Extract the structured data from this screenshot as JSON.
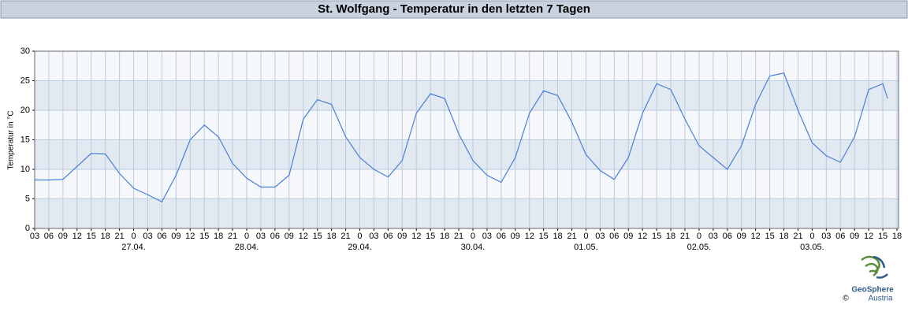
{
  "chart_data": {
    "type": "line",
    "title": "St. Wolfgang - Temperatur in den letzten 7 Tagen",
    "ylabel": "Temperatur in °C",
    "x": [
      3,
      6,
      9,
      12,
      15,
      18,
      21,
      24,
      27,
      30,
      33,
      36,
      39,
      42,
      45,
      48,
      51,
      54,
      57,
      60,
      63,
      66,
      69,
      72,
      75,
      78,
      81,
      84,
      87,
      90,
      93,
      96,
      99,
      102,
      105,
      108,
      111,
      114,
      117,
      120,
      123,
      126,
      129,
      132,
      135,
      138,
      141,
      144,
      147,
      150,
      153,
      156,
      159,
      162,
      165,
      168,
      171,
      174,
      177,
      180,
      183,
      184
    ],
    "series": [
      {
        "name": "Temperatur",
        "color": "#4a7fd6",
        "values": [
          8.2,
          8.2,
          8.3,
          10.5,
          12.7,
          12.6,
          9.3,
          6.8,
          5.7,
          4.5,
          9,
          15,
          17.5,
          15.5,
          11,
          8.5,
          7,
          7,
          9,
          18.5,
          21.8,
          21,
          15.5,
          12,
          10,
          8.7,
          11.5,
          19.5,
          22.8,
          22,
          16,
          11.5,
          9,
          7.8,
          12,
          19.5,
          23.3,
          22.5,
          18,
          12.5,
          9.8,
          8.3,
          12,
          19.5,
          24.5,
          23.5,
          18.5,
          14,
          12,
          10,
          14,
          21,
          25.8,
          26.3,
          20,
          14.5,
          12.3,
          11.2,
          15.5,
          23.5,
          24.5,
          22
        ]
      }
    ],
    "xlim": [
      3,
      186
    ],
    "xticks": [
      {
        "value": 3,
        "label": "03"
      },
      {
        "value": 6,
        "label": "06"
      },
      {
        "value": 9,
        "label": "09"
      },
      12,
      15,
      18,
      21,
      {
        "value": 24,
        "label": "0"
      },
      {
        "value": 27,
        "label": "03"
      },
      {
        "value": 30,
        "label": "06"
      },
      {
        "value": 33,
        "label": "09"
      },
      {
        "value": 36,
        "label": "12"
      },
      {
        "value": 39,
        "label": "15"
      },
      {
        "value": 42,
        "label": "18"
      },
      {
        "value": 45,
        "label": "21"
      },
      {
        "value": 48,
        "label": "0"
      },
      {
        "value": 51,
        "label": "03"
      },
      {
        "value": 54,
        "label": "06"
      },
      {
        "value": 57,
        "label": "09"
      },
      {
        "value": 60,
        "label": "12"
      },
      {
        "value": 63,
        "label": "15"
      },
      {
        "value": 66,
        "label": "18"
      },
      {
        "value": 69,
        "label": "21"
      },
      {
        "value": 72,
        "label": "0"
      },
      {
        "value": 75,
        "label": "03"
      },
      {
        "value": 78,
        "label": "06"
      },
      {
        "value": 81,
        "label": "09"
      },
      {
        "value": 84,
        "label": "12"
      },
      {
        "value": 87,
        "label": "15"
      },
      {
        "value": 90,
        "label": "18"
      },
      {
        "value": 93,
        "label": "21"
      },
      {
        "value": 96,
        "label": "0"
      },
      {
        "value": 99,
        "label": "03"
      },
      {
        "value": 102,
        "label": "06"
      },
      {
        "value": 105,
        "label": "09"
      },
      {
        "value": 108,
        "label": "12"
      },
      {
        "value": 111,
        "label": "15"
      },
      {
        "value": 114,
        "label": "18"
      },
      {
        "value": 117,
        "label": "21"
      },
      {
        "value": 120,
        "label": "0"
      },
      {
        "value": 123,
        "label": "03"
      },
      {
        "value": 126,
        "label": "06"
      },
      {
        "value": 129,
        "label": "09"
      },
      {
        "value": 132,
        "label": "12"
      },
      {
        "value": 135,
        "label": "15"
      },
      {
        "value": 138,
        "label": "18"
      },
      {
        "value": 141,
        "label": "21"
      },
      {
        "value": 144,
        "label": "0"
      },
      {
        "value": 147,
        "label": "03"
      },
      {
        "value": 150,
        "label": "06"
      },
      {
        "value": 153,
        "label": "09"
      },
      {
        "value": 156,
        "label": "12"
      },
      {
        "value": 159,
        "label": "15"
      },
      {
        "value": 162,
        "label": "18"
      },
      {
        "value": 165,
        "label": "21"
      },
      {
        "value": 168,
        "label": "0"
      },
      {
        "value": 171,
        "label": "03"
      },
      {
        "value": 174,
        "label": "06"
      },
      {
        "value": 177,
        "label": "09"
      },
      {
        "value": 180,
        "label": "12"
      },
      {
        "value": 183,
        "label": "15"
      },
      {
        "value": 186,
        "label": "18"
      }
    ],
    "date_labels": [
      {
        "value": 24,
        "label": "27.04."
      },
      {
        "value": 48,
        "label": "28.04."
      },
      {
        "value": 72,
        "label": "29.04."
      },
      {
        "value": 96,
        "label": "30.04."
      },
      {
        "value": 120,
        "label": "01.05."
      },
      {
        "value": 144,
        "label": "02.05."
      },
      {
        "value": 168,
        "label": "03.05."
      }
    ],
    "ylim": [
      0,
      30
    ],
    "yticks": [
      0,
      5,
      10,
      15,
      20,
      25,
      30
    ],
    "grid": true,
    "logo": {
      "name": "GeoSphere",
      "country": "Austria",
      "copyright": "©"
    }
  }
}
